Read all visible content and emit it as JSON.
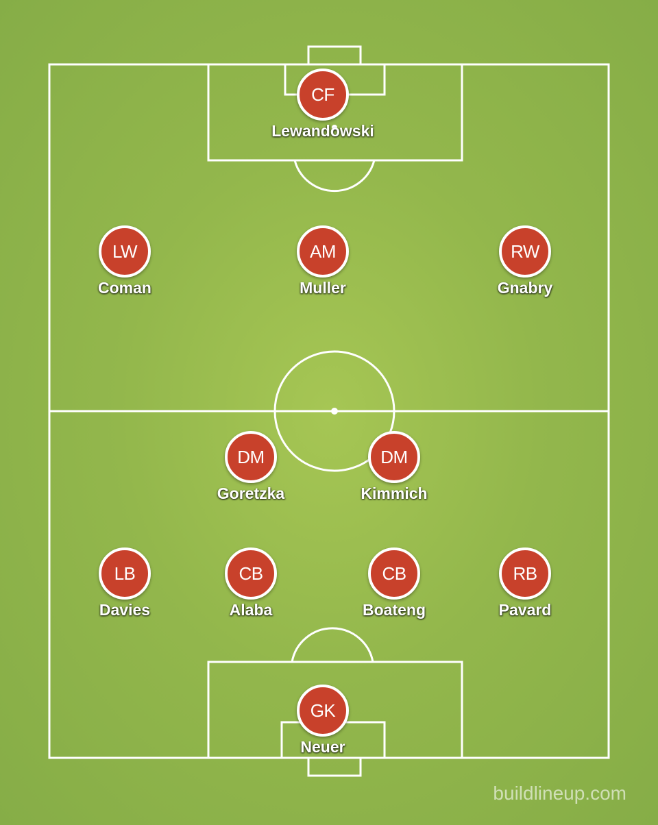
{
  "players": [
    {
      "role": "CF",
      "name": "Lewandowski"
    },
    {
      "role": "LW",
      "name": "Coman"
    },
    {
      "role": "AM",
      "name": "Muller"
    },
    {
      "role": "RW",
      "name": "Gnabry"
    },
    {
      "role": "DM",
      "name": "Goretzka"
    },
    {
      "role": "DM",
      "name": "Kimmich"
    },
    {
      "role": "LB",
      "name": "Davies"
    },
    {
      "role": "CB",
      "name": "Alaba"
    },
    {
      "role": "CB",
      "name": "Boateng"
    },
    {
      "role": "RB",
      "name": "Pavard"
    },
    {
      "role": "GK",
      "name": "Neuer"
    }
  ],
  "watermark": "buildlineup.com",
  "colors": {
    "pitch": "#93b74c",
    "badge": "#c8412b",
    "lines": "#ffffff"
  }
}
